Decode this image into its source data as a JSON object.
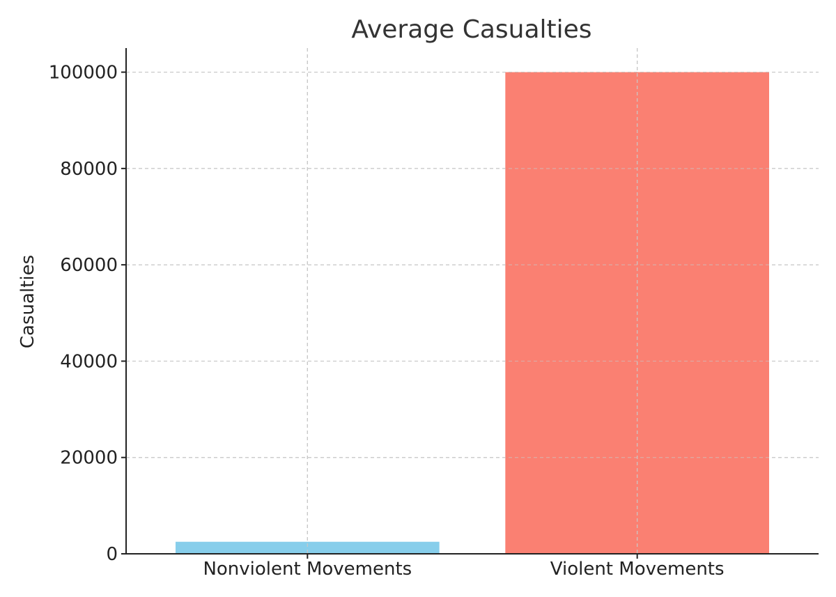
{
  "chart_data": {
    "type": "bar",
    "title": "Average Casualties",
    "xlabel": "",
    "ylabel": "Casualties",
    "categories": [
      "Nonviolent Movements",
      "Violent Movements"
    ],
    "values": [
      2500,
      100000
    ],
    "colors": [
      "#87ceeb",
      "#fa8072"
    ],
    "ylim": [
      0,
      105000
    ],
    "yticks": [
      0,
      20000,
      40000,
      60000,
      80000,
      100000
    ],
    "ytick_labels": [
      "0",
      "20000",
      "40000",
      "60000",
      "80000",
      "100000"
    ],
    "grid": true,
    "legend": "none"
  }
}
